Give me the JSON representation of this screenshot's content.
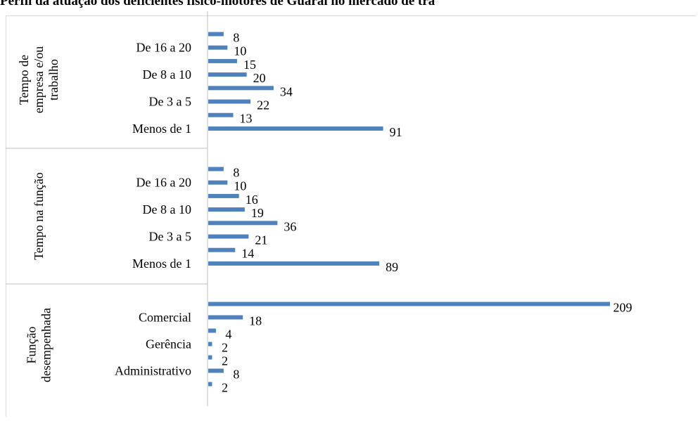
{
  "chart_data": {
    "type": "bar",
    "orientation": "horizontal",
    "title": "Perfil da atuação dos deficientes físico-motores de Guaraí no mercado de tra",
    "bar_color": "#4f81bd",
    "xlim": [
      0,
      209
    ],
    "grid": false,
    "groups": [
      {
        "label": "Tempo de empresa e/ou trabalho",
        "label_lines": [
          "Tempo de",
          "empresa e/ou",
          "trabalho"
        ],
        "categories": [
          "",
          "De 16 a 20",
          "",
          "De 8 a 10",
          "",
          "De 3 a 5",
          "",
          "Menos de 1"
        ],
        "values": [
          8,
          10,
          15,
          20,
          34,
          22,
          13,
          91
        ]
      },
      {
        "label": "Tempo na função",
        "label_lines": [
          "Tempo na função"
        ],
        "categories": [
          "",
          "De 16 a 20",
          "",
          "De 8 a 10",
          "",
          "De 3 a 5",
          "",
          "Menos de 1"
        ],
        "values": [
          8,
          10,
          16,
          19,
          36,
          21,
          14,
          89
        ]
      },
      {
        "label": "Função desempenhada",
        "label_lines": [
          "Função",
          "desempenhada"
        ],
        "categories": [
          "",
          "Comercial",
          "",
          "Gerência",
          "",
          "Administrativo",
          ""
        ],
        "values": [
          209,
          18,
          4,
          2,
          2,
          8,
          2
        ]
      }
    ]
  }
}
